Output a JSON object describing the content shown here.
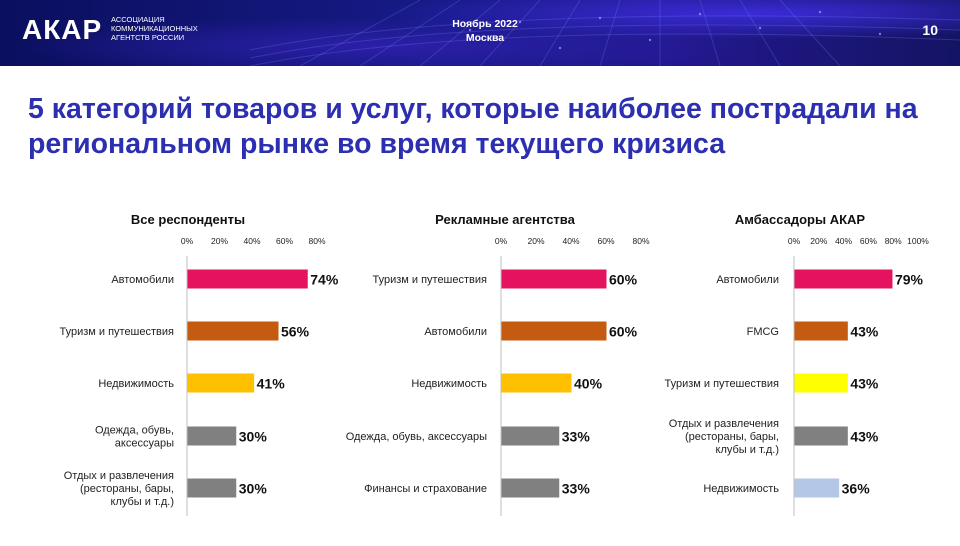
{
  "header": {
    "logo": "АКАР",
    "logo_sub": "АССОЦИАЦИЯ КОММУНИКАЦИОННЫХ АГЕНТСТВ РОССИИ",
    "date": "Ноябрь 2022",
    "city": "Москва",
    "page": "10"
  },
  "title": "5 категорий товаров и услуг, которые наиболее пострадали на региональном рынке во время текущего кризиса",
  "chart_data": [
    {
      "type": "bar",
      "orientation": "horizontal",
      "title": "Все респонденты",
      "categories": [
        "Автомобили",
        "Туризм и путешествия",
        "Недвижимость",
        "Одежда, обувь, аксессуары",
        "Отдых и развлечения (рестораны, бары, клубы и т.д.)"
      ],
      "values": [
        74,
        56,
        41,
        30,
        30
      ],
      "value_labels": [
        "74%",
        "56%",
        "41%",
        "30%",
        "30%"
      ],
      "colors": [
        "#e5135f",
        "#c55a11",
        "#ffc000",
        "#808080",
        "#808080"
      ],
      "xlim": [
        0,
        80
      ],
      "ticks": [
        "0%",
        "20%",
        "40%",
        "60%",
        "80%"
      ]
    },
    {
      "type": "bar",
      "orientation": "horizontal",
      "title": "Рекламные агентства",
      "categories": [
        "Туризм и путешествия",
        "Автомобили",
        "Недвижимость",
        "Одежда, обувь, аксессуары",
        "Финансы и страхование"
      ],
      "values": [
        60,
        60,
        40,
        33,
        33
      ],
      "value_labels": [
        "60%",
        "60%",
        "40%",
        "33%",
        "33%"
      ],
      "colors": [
        "#e5135f",
        "#c55a11",
        "#ffc000",
        "#808080",
        "#808080"
      ],
      "xlim": [
        0,
        80
      ],
      "ticks": [
        "0%",
        "20%",
        "40%",
        "60%",
        "80%"
      ]
    },
    {
      "type": "bar",
      "orientation": "horizontal",
      "title": "Амбассадоры АКАР",
      "categories": [
        "Автомобили",
        "FMCG",
        "Туризм и путешествия",
        "Отдых и развлечения (рестораны, бары, клубы и т.д.)",
        "Недвижимость"
      ],
      "values": [
        79,
        43,
        43,
        43,
        36
      ],
      "value_labels": [
        "79%",
        "43%",
        "43%",
        "43%",
        "36%"
      ],
      "colors": [
        "#e5135f",
        "#c55a11",
        "#ffff00",
        "#808080",
        "#b4c7e7"
      ],
      "xlim": [
        0,
        100
      ],
      "ticks": [
        "0%",
        "20%",
        "40%",
        "60%",
        "80%",
        "100%"
      ]
    }
  ]
}
